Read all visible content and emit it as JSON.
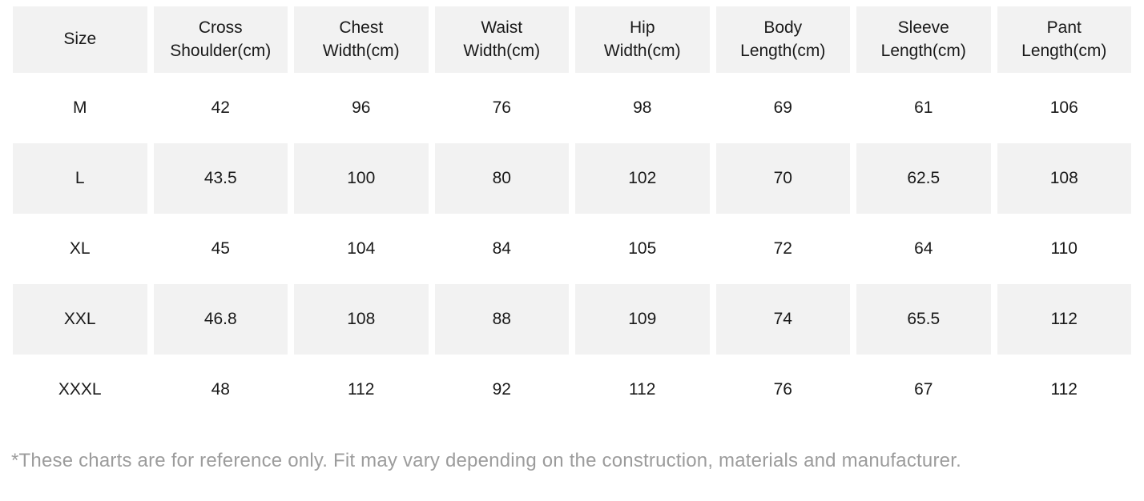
{
  "size_chart": {
    "headers": [
      "Size",
      "Cross\nShoulder(cm)",
      "Chest\nWidth(cm)",
      "Waist\nWidth(cm)",
      "Hip\nWidth(cm)",
      "Body\nLength(cm)",
      "Sleeve\nLength(cm)",
      "Pant\nLength(cm)"
    ],
    "rows": [
      [
        "M",
        "42",
        "96",
        "76",
        "98",
        "69",
        "61",
        "106"
      ],
      [
        "L",
        "43.5",
        "100",
        "80",
        "102",
        "70",
        "62.5",
        "108"
      ],
      [
        "XL",
        "45",
        "104",
        "84",
        "105",
        "72",
        "64",
        "110"
      ],
      [
        "XXL",
        "46.8",
        "108",
        "88",
        "109",
        "74",
        "65.5",
        "112"
      ],
      [
        "XXXL",
        "48",
        "112",
        "92",
        "112",
        "76",
        "67",
        "112"
      ]
    ]
  },
  "footnote": "*These charts are for reference only. Fit may vary depending on the construction, materials and manufacturer.",
  "colors": {
    "row_stripe": "#f2f2f2",
    "text": "#1a1a1a",
    "footnote_text": "#9c9c9c",
    "background": "#ffffff"
  },
  "chart_data": {
    "type": "table",
    "title": "Garment size chart (cm)",
    "columns": [
      "Size",
      "Cross Shoulder(cm)",
      "Chest Width(cm)",
      "Waist Width(cm)",
      "Hip Width(cm)",
      "Body Length(cm)",
      "Sleeve Length(cm)",
      "Pant Length(cm)"
    ],
    "rows": [
      {
        "size": "M",
        "cross_shoulder": 42,
        "chest_width": 96,
        "waist_width": 76,
        "hip_width": 98,
        "body_length": 69,
        "sleeve_length": 61,
        "pant_length": 106
      },
      {
        "size": "L",
        "cross_shoulder": 43.5,
        "chest_width": 100,
        "waist_width": 80,
        "hip_width": 102,
        "body_length": 70,
        "sleeve_length": 62.5,
        "pant_length": 108
      },
      {
        "size": "XL",
        "cross_shoulder": 45,
        "chest_width": 104,
        "waist_width": 84,
        "hip_width": 105,
        "body_length": 72,
        "sleeve_length": 64,
        "pant_length": 110
      },
      {
        "size": "XXL",
        "cross_shoulder": 46.8,
        "chest_width": 108,
        "waist_width": 88,
        "hip_width": 109,
        "body_length": 74,
        "sleeve_length": 65.5,
        "pant_length": 112
      },
      {
        "size": "XXXL",
        "cross_shoulder": 48,
        "chest_width": 112,
        "waist_width": 92,
        "hip_width": 112,
        "body_length": 76,
        "sleeve_length": 67,
        "pant_length": 112
      }
    ],
    "unit": "cm",
    "stripe_pattern": "header and rows L, XXL shaded light gray; rows M, XL, XXXL white"
  }
}
